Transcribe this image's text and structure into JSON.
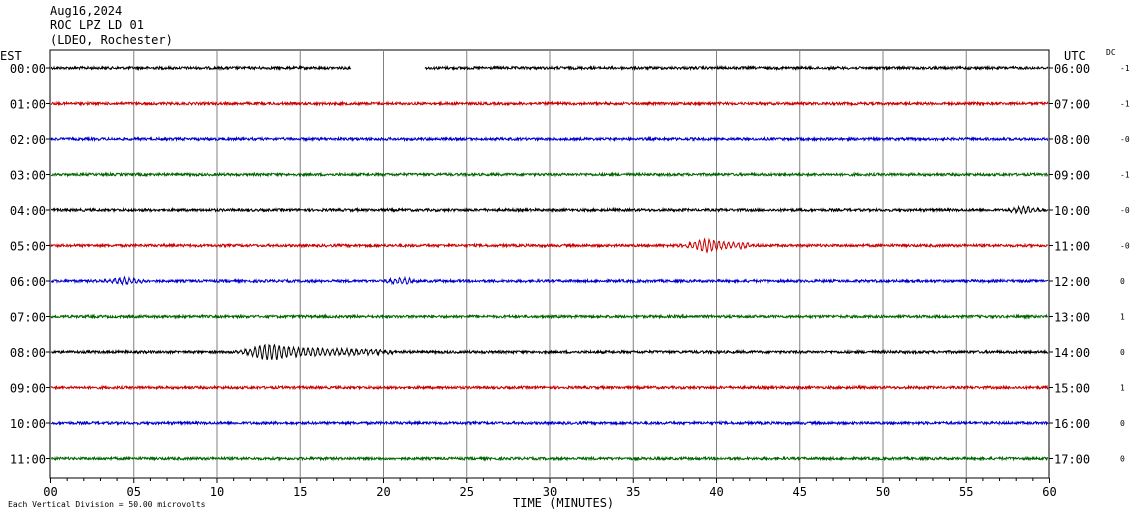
{
  "header": {
    "date": "Aug16,2024",
    "station": "ROC LPZ LD 01",
    "network": "(LDEO, Rochester)"
  },
  "left_label": "EST",
  "right_label": "UTC",
  "dc_label": "DC",
  "footnote": "Each Vertical Division =   50.00 microvolts",
  "chart_data": {
    "type": "line",
    "title": "ROC LPZ LD 01",
    "xlabel": "TIME (MINUTES)",
    "xlim": [
      0,
      60
    ],
    "x_ticks": [
      "00",
      "05",
      "10",
      "15",
      "20",
      "25",
      "30",
      "35",
      "40",
      "45",
      "50",
      "55",
      "60"
    ],
    "left_hours": [
      "00:00",
      "01:00",
      "02:00",
      "03:00",
      "04:00",
      "05:00",
      "06:00",
      "07:00",
      "08:00",
      "09:00",
      "10:00",
      "11:00"
    ],
    "right_hours": [
      "06:00",
      "07:00",
      "08:00",
      "09:00",
      "10:00",
      "11:00",
      "12:00",
      "13:00",
      "14:00",
      "15:00",
      "16:00",
      "17:00"
    ],
    "dc_offsets": [
      "-1",
      "-1",
      "-0",
      "-1",
      "-0",
      "-0",
      "0",
      "1",
      "0",
      "1",
      "0",
      "0"
    ],
    "trace_colors": [
      "#000000",
      "#cc0000",
      "#0000cc",
      "#006600"
    ],
    "gaps": [
      {
        "row": 0,
        "from": 18.1,
        "to": 22.5
      }
    ],
    "events": [
      {
        "row": 5,
        "at": 39.5,
        "width": 1.5,
        "amp": 6
      },
      {
        "row": 5,
        "at": 41.5,
        "width": 1.0,
        "amp": 3
      },
      {
        "row": 6,
        "at": 4.5,
        "width": 1.5,
        "amp": 3
      },
      {
        "row": 6,
        "at": 21.0,
        "width": 1.2,
        "amp": 3
      },
      {
        "row": 8,
        "at": 13.2,
        "width": 1.8,
        "amp": 7
      },
      {
        "row": 8,
        "at": 16.0,
        "width": 2.5,
        "amp": 4
      },
      {
        "row": 8,
        "at": 19.0,
        "width": 2.0,
        "amp": 2.5
      },
      {
        "row": 4,
        "at": 58.5,
        "width": 1.2,
        "amp": 3
      }
    ]
  }
}
